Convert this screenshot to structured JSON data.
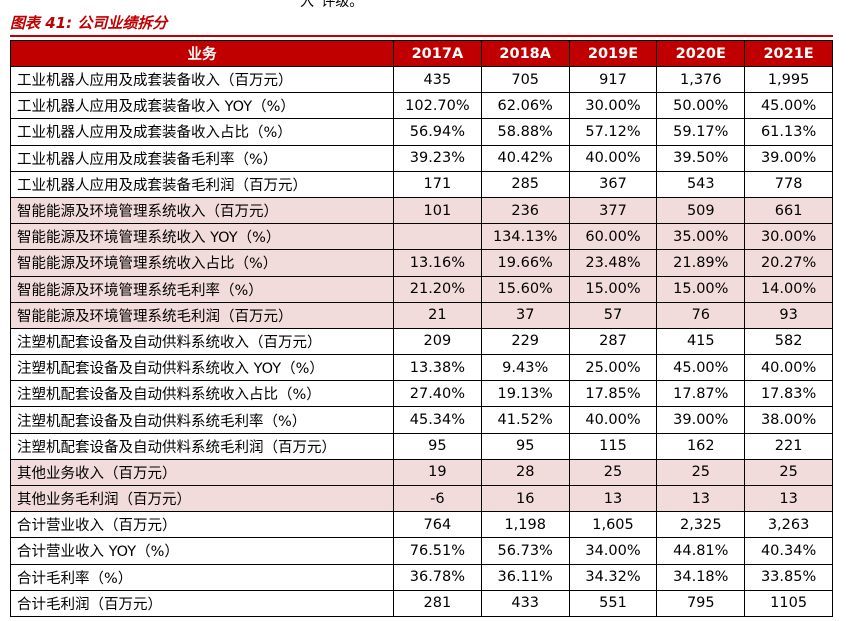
{
  "header": {
    "cut_text": "入”评级。",
    "title": "图表 41: 公司业绩拆分"
  },
  "table": {
    "columns": [
      "业务",
      "2017A",
      "2018A",
      "2019E",
      "2020E",
      "2021E"
    ],
    "rows": [
      {
        "label": "工业机器人应用及成套装备收入（百万元）",
        "values": [
          "435",
          "705",
          "917",
          "1,376",
          "1,995"
        ],
        "shaded": false
      },
      {
        "label": "工业机器人应用及成套装备收入 YOY（%）",
        "values": [
          "102.70%",
          "62.06%",
          "30.00%",
          "50.00%",
          "45.00%"
        ],
        "shaded": false
      },
      {
        "label": "工业机器人应用及成套装备收入占比（%）",
        "values": [
          "56.94%",
          "58.88%",
          "57.12%",
          "59.17%",
          "61.13%"
        ],
        "shaded": false
      },
      {
        "label": "工业机器人应用及成套装备毛利率（%）",
        "values": [
          "39.23%",
          "40.42%",
          "40.00%",
          "39.50%",
          "39.00%"
        ],
        "shaded": false
      },
      {
        "label": "工业机器人应用及成套装备毛利润（百万元）",
        "values": [
          "171",
          "285",
          "367",
          "543",
          "778"
        ],
        "shaded": false
      },
      {
        "label": "智能能源及环境管理系统收入（百万元）",
        "values": [
          "101",
          "236",
          "377",
          "509",
          "661"
        ],
        "shaded": true
      },
      {
        "label": "智能能源及环境管理系统收入 YOY（%）",
        "values": [
          null,
          "134.13%",
          "60.00%",
          "35.00%",
          "30.00%"
        ],
        "shaded": true
      },
      {
        "label": "智能能源及环境管理系统收入占比（%）",
        "values": [
          "13.16%",
          "19.66%",
          "23.48%",
          "21.89%",
          "20.27%"
        ],
        "shaded": true
      },
      {
        "label": "智能能源及环境管理系统毛利率（%）",
        "values": [
          "21.20%",
          "15.60%",
          "15.00%",
          "15.00%",
          "14.00%"
        ],
        "shaded": true
      },
      {
        "label": "智能能源及环境管理系统毛利润（百万元）",
        "values": [
          "21",
          "37",
          "57",
          "76",
          "93"
        ],
        "shaded": true
      },
      {
        "label": "注塑机配套设备及自动供料系统收入（百万元）",
        "values": [
          "209",
          "229",
          "287",
          "415",
          "582"
        ],
        "shaded": false
      },
      {
        "label": "注塑机配套设备及自动供料系统收入 YOY（%）",
        "values": [
          "13.38%",
          "9.43%",
          "25.00%",
          "45.00%",
          "40.00%"
        ],
        "shaded": false
      },
      {
        "label": "注塑机配套设备及自动供料系统收入占比（%）",
        "values": [
          "27.40%",
          "19.13%",
          "17.85%",
          "17.87%",
          "17.83%"
        ],
        "shaded": false
      },
      {
        "label": "注塑机配套设备及自动供料系统毛利率（%）",
        "values": [
          "45.34%",
          "41.52%",
          "40.00%",
          "39.00%",
          "38.00%"
        ],
        "shaded": false
      },
      {
        "label": "注塑机配套设备及自动供料系统毛利润（百万元）",
        "values": [
          "95",
          "95",
          "115",
          "162",
          "221"
        ],
        "shaded": false
      },
      {
        "label": "其他业务收入（百万元）",
        "values": [
          "19",
          "28",
          "25",
          "25",
          "25"
        ],
        "shaded": true
      },
      {
        "label": "其他业务毛利润（百万元）",
        "values": [
          "-6",
          "16",
          "13",
          "13",
          "13"
        ],
        "shaded": true
      },
      {
        "label": "合计营业收入（百万元）",
        "values": [
          "764",
          "1,198",
          "1,605",
          "2,325",
          "3,263"
        ],
        "shaded": false
      },
      {
        "label": "合计营业收入 YOY（%）",
        "values": [
          "76.51%",
          "56.73%",
          "34.00%",
          "44.81%",
          "40.34%"
        ],
        "shaded": false
      },
      {
        "label": "合计毛利率（%）",
        "values": [
          "36.78%",
          "36.11%",
          "34.32%",
          "34.18%",
          "33.85%"
        ],
        "shaded": false
      },
      {
        "label": "合计毛利润（百万元）",
        "values": [
          "281",
          "433",
          "551",
          "795",
          "1105"
        ],
        "shaded": false
      }
    ]
  }
}
